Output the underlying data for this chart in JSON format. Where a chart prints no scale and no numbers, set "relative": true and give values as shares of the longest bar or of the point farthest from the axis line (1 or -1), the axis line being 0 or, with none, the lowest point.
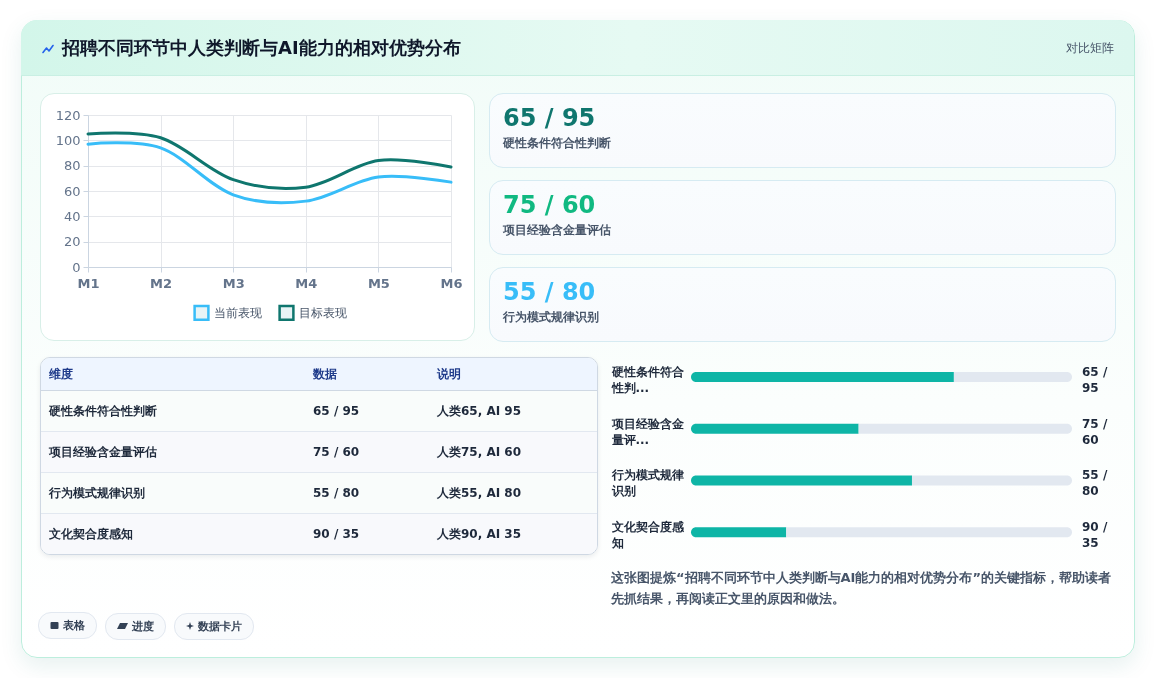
{
  "chart_data": [
    {
      "type": "other",
      "title": "招聘不同环节中人类判断与AI能力的相对优势分布",
      "annotations": [
        "对比矩阵"
      ]
    },
    {
      "type": "line",
      "categories": [
        "M1",
        "M2",
        "M3",
        "M4",
        "M5",
        "M6"
      ],
      "series": [
        {
          "name": "当前表现",
          "color": "#38bdf8",
          "values": [
            97,
            94,
            57,
            52,
            71,
            67
          ]
        },
        {
          "name": "目标表现",
          "color": "#0f766e",
          "values": [
            105,
            102,
            69,
            63,
            84,
            79
          ]
        }
      ],
      "ylim": [
        0,
        120
      ],
      "yticks": [
        0,
        20,
        40,
        60,
        80,
        100,
        120
      ],
      "grid": true,
      "legend": "bottom"
    },
    {
      "type": "other",
      "categories": [
        "硬性条件符合性判断",
        "项目经验含金量评估",
        "行为模式规律识别"
      ],
      "value_labels": [
        "65 / 95",
        "75 / 60",
        "55 / 80"
      ]
    },
    {
      "type": "other",
      "ylabel": "维度",
      "categories": [
        "数据",
        "说明"
      ],
      "y_categories": [
        "硬性条件符合性判断",
        "项目经验含金量评估",
        "行为模式规律识别",
        "文化契合度感知"
      ],
      "cell_labels": [
        [
          "65 / 95",
          "人类65, AI 95"
        ],
        [
          "75 / 60",
          "人类75, AI 60"
        ],
        [
          "55 / 80",
          "人类55, AI 80"
        ],
        [
          "90 / 35",
          "人类90, AI 35"
        ]
      ]
    },
    {
      "type": "bar",
      "orientation": "horizontal",
      "stacked": true,
      "relative": true,
      "categories": [
        "硬性条件符合性判...",
        "项目经验含金量评...",
        "行为模式规律识别",
        "文化契合度感知"
      ],
      "series": [
        {
          "color": "#0eb5a6",
          "values": [
            0.69,
            0.44,
            0.58,
            0.25
          ]
        },
        {
          "color": "#e2e8f0",
          "values": [
            0.31,
            0.56,
            0.42,
            0.75
          ]
        }
      ],
      "totals": [
        "65 / 95",
        "75 / 60",
        "55 / 80",
        "90 / 35"
      ],
      "annotations": [
        "这张图提炼“招聘不同环节中人类判断与AI能力的相对优势分布”的关键指标，帮助读者先抓结果，再阅读正文里的原因和做法。"
      ]
    },
    {
      "type": "other",
      "annotations": [
        "表格",
        "进度",
        "数据卡片"
      ]
    }
  ]
}
